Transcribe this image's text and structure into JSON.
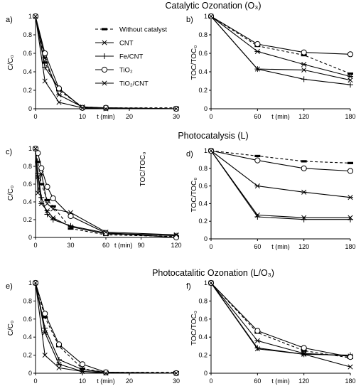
{
  "row_titles": [
    "Catalytic Ozonation (O₃)",
    "Photocatalysis (L)",
    "Photocatalitic Ozonation (L/O₃)"
  ],
  "stray_label": "TOC/TOC₀",
  "legend": [
    {
      "name": "Without catalyst",
      "marker": "dash",
      "dashed": true
    },
    {
      "name": "CNT",
      "marker": "asterisk",
      "dashed": false
    },
    {
      "name": "Fe/CNT",
      "marker": "plus",
      "dashed": false
    },
    {
      "name": "TiO₂",
      "marker": "circle",
      "dashed": false
    },
    {
      "name": "TiO₂/CNT",
      "marker": "x",
      "dashed": false
    }
  ],
  "chart_data": [
    {
      "panel": "a)",
      "type": "line",
      "xlabel": "t (min)",
      "ylabel": "C/C₀",
      "xlim": [
        0,
        30
      ],
      "ylim": [
        0,
        1
      ],
      "xticks": [
        "0",
        "10",
        "20",
        "30"
      ],
      "yticks": [
        "0",
        "0.2",
        "0.4",
        "0.6",
        "0.8",
        "1"
      ],
      "x": [
        0,
        2,
        5,
        10,
        15,
        30
      ],
      "series": [
        {
          "name": "Without catalyst",
          "values": [
            1,
            0.5,
            0.2,
            0.02,
            0.01,
            0.01
          ]
        },
        {
          "name": "CNT",
          "values": [
            1,
            0.55,
            0.15,
            0.02,
            0.01,
            0.0
          ]
        },
        {
          "name": "Fe/CNT",
          "values": [
            1,
            0.45,
            0.22,
            0.01,
            0.01,
            0.0
          ]
        },
        {
          "name": "TiO₂",
          "values": [
            1,
            0.6,
            0.22,
            0.01,
            0.01,
            0.0
          ]
        },
        {
          "name": "TiO₂/CNT",
          "values": [
            1,
            0.3,
            0.07,
            0.01,
            0.0,
            0.0
          ]
        }
      ]
    },
    {
      "panel": "b)",
      "type": "line",
      "xlabel": "t (min)",
      "ylabel": "TOC/TOC₀",
      "xlim": [
        0,
        180
      ],
      "ylim": [
        0,
        1
      ],
      "xticks": [
        "0",
        "60",
        "120",
        "180"
      ],
      "yticks": [
        "0",
        "0.2",
        "0.4",
        "0.6",
        "0.8",
        "1"
      ],
      "x": [
        0,
        60,
        120,
        180
      ],
      "series": [
        {
          "name": "Without catalyst",
          "values": [
            1,
            0.68,
            0.58,
            0.38
          ]
        },
        {
          "name": "CNT",
          "values": [
            1,
            0.62,
            0.48,
            0.35
          ]
        },
        {
          "name": "Fe/CNT",
          "values": [
            1,
            0.43,
            0.32,
            0.26
          ]
        },
        {
          "name": "TiO₂",
          "values": [
            1,
            0.7,
            0.61,
            0.59
          ]
        },
        {
          "name": "TiO₂/CNT",
          "values": [
            1,
            0.43,
            0.42,
            0.31
          ]
        }
      ]
    },
    {
      "panel": "c)",
      "type": "line",
      "xlabel": "t (min)",
      "ylabel": "C/C₀",
      "xlim": [
        0,
        120
      ],
      "ylim": [
        0,
        1
      ],
      "xticks": [
        "0",
        "30",
        "60",
        "90",
        "120"
      ],
      "yticks": [
        "0",
        "0.2",
        "0.4",
        "0.6",
        "0.8",
        "1"
      ],
      "x": [
        0,
        2,
        5,
        10,
        15,
        30,
        60,
        120
      ],
      "series": [
        {
          "name": "Without catalyst",
          "values": [
            1,
            0.85,
            0.6,
            0.42,
            0.35,
            0.1,
            0.03,
            0.01
          ]
        },
        {
          "name": "CNT",
          "values": [
            1,
            0.68,
            0.38,
            0.3,
            0.22,
            0.12,
            0.04,
            0.02
          ]
        },
        {
          "name": "Fe/CNT",
          "values": [
            1,
            0.72,
            0.45,
            0.26,
            0.2,
            0.13,
            0.05,
            0.02
          ]
        },
        {
          "name": "TiO₂",
          "values": [
            1,
            0.95,
            0.78,
            0.57,
            0.44,
            0.24,
            0.05,
            0.0
          ]
        },
        {
          "name": "TiO₂/CNT",
          "values": [
            1,
            0.5,
            0.72,
            0.38,
            0.32,
            0.28,
            0.06,
            0.03
          ]
        }
      ]
    },
    {
      "panel": "d)",
      "type": "line",
      "xlabel": "t (min)",
      "ylabel": "TOC/TOC₀",
      "xlim": [
        0,
        180
      ],
      "ylim": [
        0,
        1
      ],
      "xticks": [
        "0",
        "60",
        "120",
        "180"
      ],
      "yticks": [
        "0",
        "0.2",
        "0.4",
        "0.6",
        "0.8",
        "1"
      ],
      "x": [
        0,
        60,
        120,
        180
      ],
      "series": [
        {
          "name": "Without catalyst",
          "values": [
            1,
            0.94,
            0.88,
            0.86
          ]
        },
        {
          "name": "CNT",
          "values": [
            1,
            0.6,
            0.53,
            0.47
          ]
        },
        {
          "name": "Fe/CNT",
          "values": [
            1,
            0.25,
            0.22,
            0.22
          ]
        },
        {
          "name": "TiO₂",
          "values": [
            1,
            0.89,
            0.8,
            0.77
          ]
        },
        {
          "name": "TiO₂/CNT",
          "values": [
            1,
            0.27,
            0.24,
            0.24
          ]
        }
      ]
    },
    {
      "panel": "e)",
      "type": "line",
      "xlabel": "t (min)",
      "ylabel": "C/C₀",
      "xlim": [
        0,
        30
      ],
      "ylim": [
        0,
        1
      ],
      "xticks": [
        "0",
        "10",
        "20",
        "30"
      ],
      "yticks": [
        "0",
        "0.2",
        "0.4",
        "0.6",
        "0.8",
        "1"
      ],
      "x": [
        0,
        2,
        5,
        10,
        15,
        30
      ],
      "series": [
        {
          "name": "Without catalyst",
          "values": [
            1,
            0.62,
            0.3,
            0.05,
            0.01,
            0.01
          ]
        },
        {
          "name": "CNT",
          "values": [
            1,
            0.45,
            0.1,
            0.02,
            0.01,
            0.0
          ]
        },
        {
          "name": "Fe/CNT",
          "values": [
            1,
            0.5,
            0.15,
            0.04,
            0.01,
            0.0
          ]
        },
        {
          "name": "TiO₂",
          "values": [
            1,
            0.66,
            0.32,
            0.1,
            0.01,
            0.0
          ]
        },
        {
          "name": "TiO₂/CNT",
          "values": [
            1,
            0.2,
            0.06,
            0.02,
            0.0,
            0.0
          ]
        }
      ]
    },
    {
      "panel": "f)",
      "type": "line",
      "xlabel": "t (min)",
      "ylabel": "TOC/TOC₀",
      "xlim": [
        0,
        180
      ],
      "ylim": [
        0,
        1
      ],
      "xticks": [
        "0",
        "60",
        "120",
        "180"
      ],
      "yticks": [
        "0",
        "0.2",
        "0.4",
        "0.6",
        "0.8",
        "1"
      ],
      "x": [
        0,
        60,
        120,
        180
      ],
      "series": [
        {
          "name": "Without catalyst",
          "values": [
            1,
            0.45,
            0.25,
            0.17
          ]
        },
        {
          "name": "CNT",
          "values": [
            1,
            0.36,
            0.22,
            0.19
          ]
        },
        {
          "name": "Fe/CNT",
          "values": [
            1,
            0.28,
            0.21,
            0.2
          ]
        },
        {
          "name": "TiO₂",
          "values": [
            1,
            0.47,
            0.28,
            0.18
          ]
        },
        {
          "name": "TiO₂/CNT",
          "values": [
            1,
            0.27,
            0.21,
            0.07
          ]
        }
      ]
    }
  ]
}
